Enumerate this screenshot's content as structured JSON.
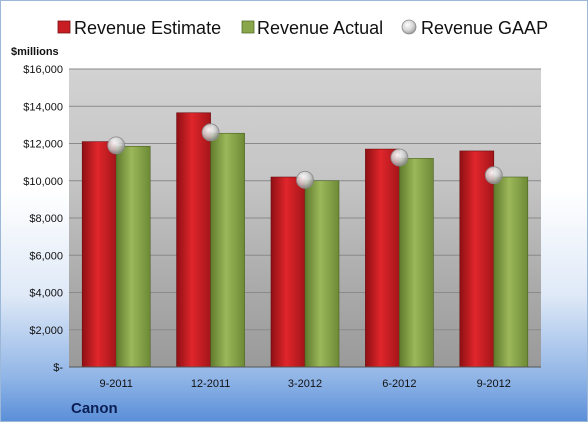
{
  "chart_data": {
    "type": "bar",
    "categories": [
      "9-2011",
      "12-2011",
      "3-2012",
      "6-2012",
      "9-2012"
    ],
    "series": [
      {
        "name": "Revenue Estimate",
        "values": [
          12100,
          13650,
          10200,
          11700,
          11600
        ]
      },
      {
        "name": "Revenue Actual",
        "values": [
          11850,
          12550,
          10000,
          11200,
          10200
        ]
      },
      {
        "name": "Revenue GAAP",
        "values": [
          11900,
          12600,
          10050,
          11250,
          10300
        ]
      }
    ],
    "series_types": [
      "bar",
      "bar",
      "scatter"
    ],
    "colors": {
      "Revenue Estimate": "#c81e23",
      "Revenue Actual": "#8aa64a",
      "Revenue GAAP": "#c8c8c8"
    },
    "title": "",
    "ylabel": "$millions",
    "xlabel": "",
    "ylim": [
      0,
      16000
    ],
    "yticks": [
      0,
      2000,
      4000,
      6000,
      8000,
      10000,
      12000,
      14000,
      16000
    ],
    "ytick_labels": [
      "$-",
      "$2,000",
      "$4,000",
      "$6,000",
      "$8,000",
      "$10,000",
      "$12,000",
      "$14,000",
      "$16,000"
    ],
    "grid": true,
    "legend_position": "top"
  },
  "company": "Canon"
}
